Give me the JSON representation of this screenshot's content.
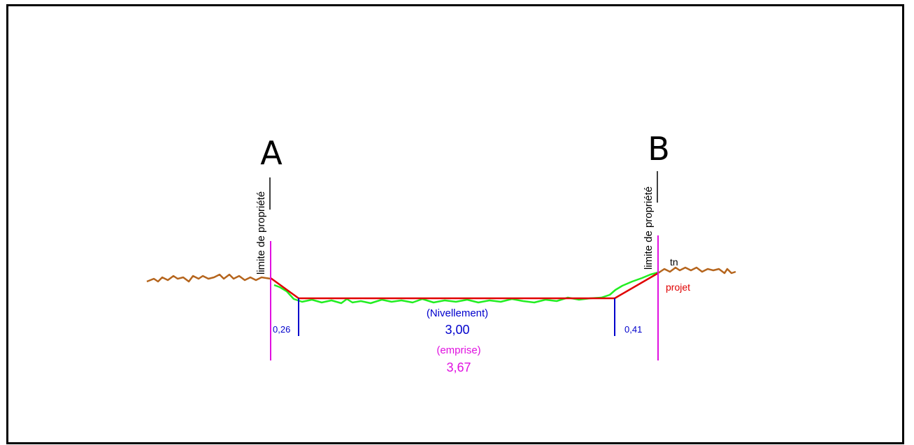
{
  "points": {
    "a": "A",
    "b": "B"
  },
  "labels": {
    "limite_a": "limite de propriété",
    "limite_b": "limite de propriété",
    "tn": "tn",
    "projet": "projet",
    "nivellement": "(Nivellement)",
    "nivellement_value": "3,00",
    "emprise": "(emprise)",
    "emprise_value": "3,67",
    "left_offset": "0,26",
    "right_offset": "0,41"
  },
  "colors": {
    "ground": "#b5651d",
    "grass": "#22ee22",
    "project": "#e00000",
    "limit": "#e010e0",
    "nivellement": "#0000cc",
    "emprise": "#e010e0"
  }
}
